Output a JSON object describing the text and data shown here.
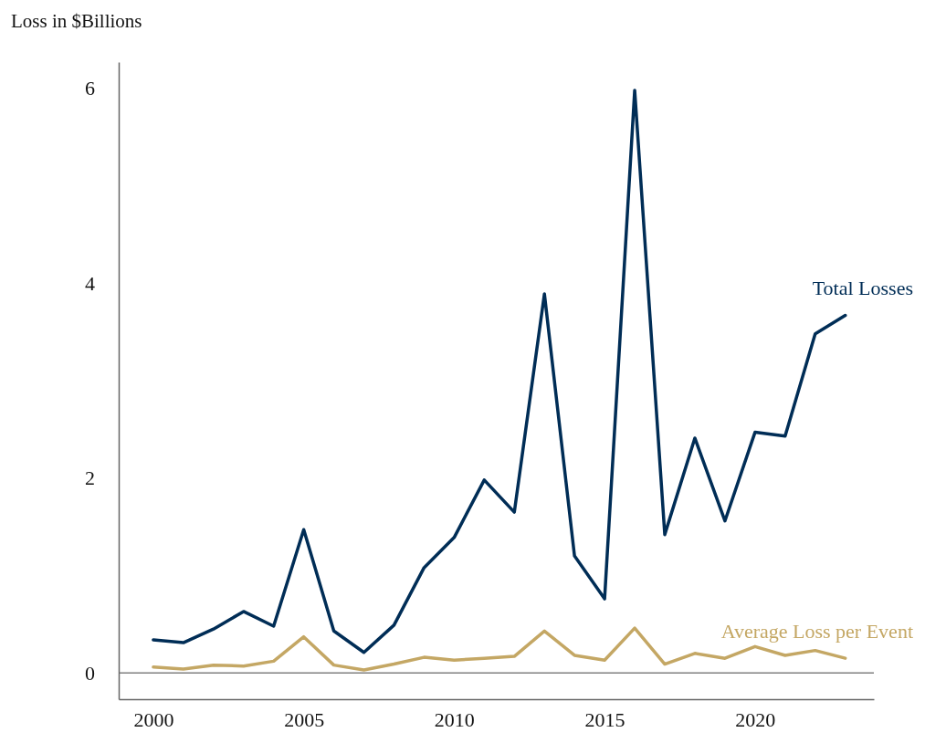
{
  "chart_data": {
    "type": "line",
    "ylabel": "Loss in $Billions",
    "x": [
      2000,
      2001,
      2002,
      2003,
      2004,
      2005,
      2006,
      2007,
      2008,
      2009,
      2010,
      2011,
      2012,
      2013,
      2014,
      2015,
      2016,
      2017,
      2018,
      2019,
      2020,
      2021,
      2022,
      2023
    ],
    "series": [
      {
        "name": "Total Losses",
        "color": "#002d56",
        "values": [
          0.34,
          0.31,
          0.45,
          0.63,
          0.48,
          1.47,
          0.43,
          0.21,
          0.49,
          1.08,
          1.39,
          1.98,
          1.65,
          3.89,
          1.2,
          0.76,
          5.98,
          1.42,
          2.41,
          1.56,
          2.47,
          2.43,
          3.48,
          3.67
        ]
      },
      {
        "name": "Average Loss per Event",
        "color": "#c4a764",
        "values": [
          0.06,
          0.04,
          0.08,
          0.07,
          0.12,
          0.37,
          0.08,
          0.03,
          0.09,
          0.16,
          0.13,
          0.15,
          0.17,
          0.43,
          0.18,
          0.13,
          0.46,
          0.09,
          0.2,
          0.15,
          0.27,
          0.18,
          0.23,
          0.15
        ]
      }
    ],
    "xlim": [
      1998.85,
      2023.95
    ],
    "xticks": [
      2000,
      2005,
      2010,
      2015,
      2020
    ],
    "ylim": [
      -0.27,
      6.27
    ],
    "yticks": [
      0,
      2,
      4,
      6
    ],
    "ref_lines": [
      {
        "axis": "y",
        "value": 0,
        "color": "#808080"
      }
    ],
    "grid": false,
    "marker": "none",
    "line_style": "solid"
  }
}
